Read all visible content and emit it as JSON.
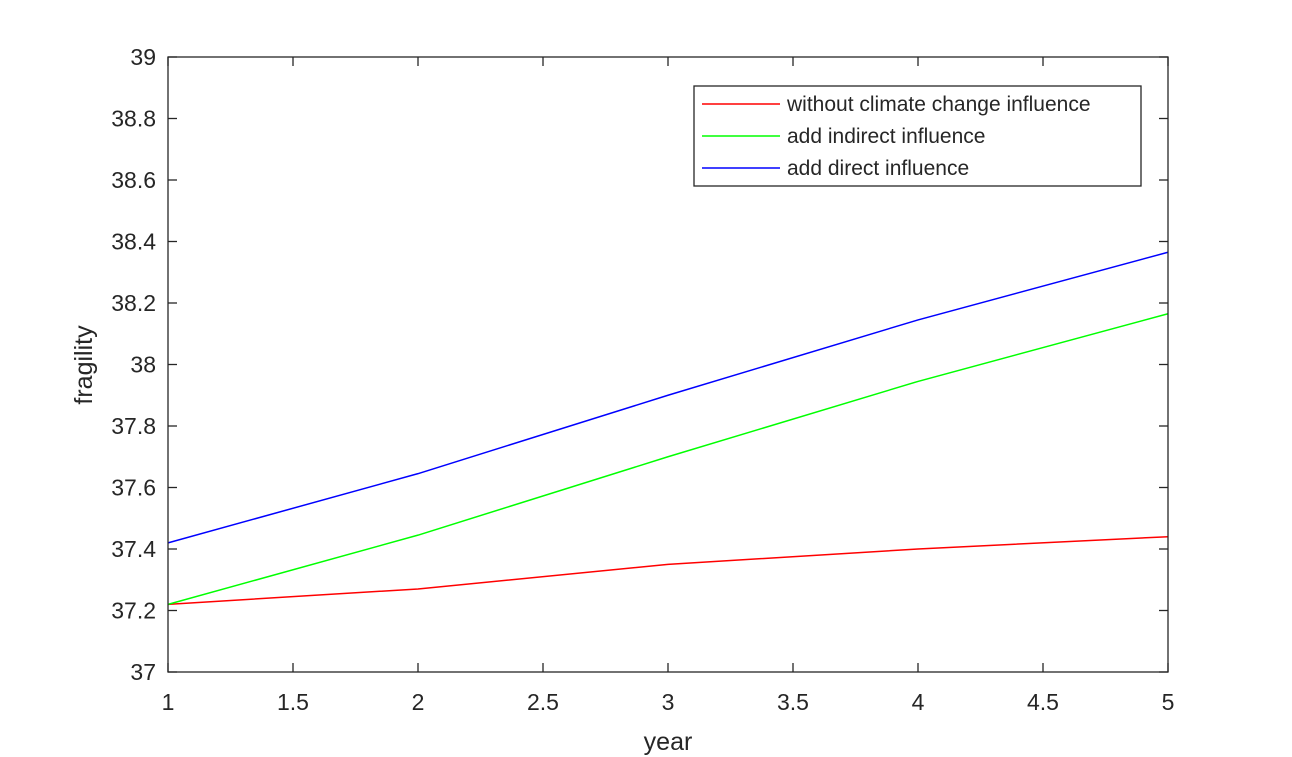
{
  "chart_data": {
    "type": "line",
    "title": "",
    "xlabel": "year",
    "ylabel": "fragility",
    "xlim": [
      1,
      5
    ],
    "ylim": [
      37,
      39
    ],
    "xticks": [
      1,
      1.5,
      2,
      2.5,
      3,
      3.5,
      4,
      4.5,
      5
    ],
    "xtick_labels": [
      "1",
      "1.5",
      "2",
      "2.5",
      "3",
      "3.5",
      "4",
      "4.5",
      "5"
    ],
    "yticks": [
      37,
      37.2,
      37.4,
      37.6,
      37.8,
      38,
      38.2,
      38.4,
      38.6,
      38.8,
      39
    ],
    "ytick_labels": [
      "37",
      "37.2",
      "37.4",
      "37.6",
      "37.8",
      "38",
      "38.2",
      "38.4",
      "38.6",
      "38.8",
      "39"
    ],
    "grid": false,
    "legend_position": "top-right",
    "x": [
      1,
      2,
      3,
      4,
      5
    ],
    "series": [
      {
        "name": "without climate change influence",
        "color": "#ff0000",
        "values": [
          37.22,
          37.27,
          37.35,
          37.4,
          37.44
        ]
      },
      {
        "name": "add indirect influence",
        "color": "#00ff00",
        "values": [
          37.22,
          37.445,
          37.7,
          37.945,
          38.165
        ]
      },
      {
        "name": "add direct influence",
        "color": "#0000ff",
        "values": [
          37.42,
          37.645,
          37.9,
          38.145,
          38.365
        ]
      }
    ]
  }
}
